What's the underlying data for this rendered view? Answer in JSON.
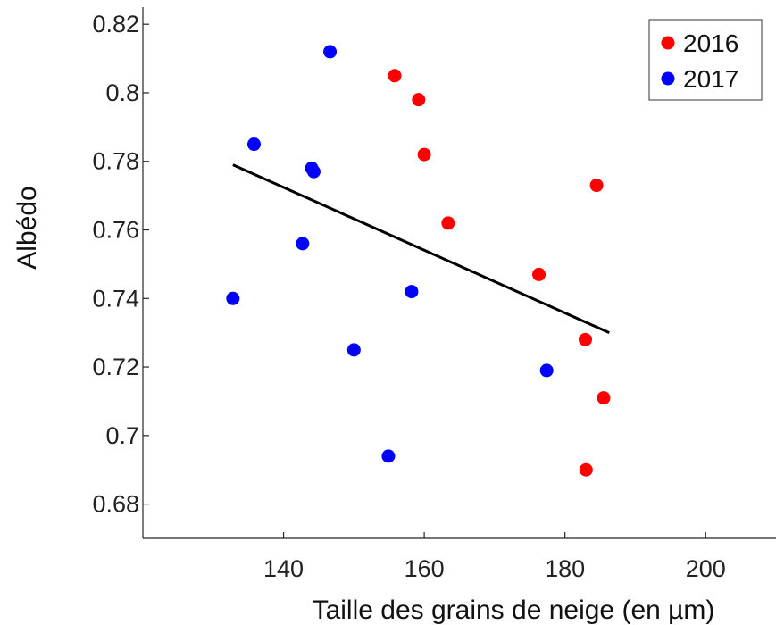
{
  "chart_data": {
    "type": "scatter",
    "title": "",
    "xlabel": "Taille des grains de neige (en µm)",
    "ylabel": "Albédo",
    "xlim": [
      120,
      210
    ],
    "ylim": [
      0.67,
      0.825
    ],
    "xticks": [
      {
        "value": 140,
        "label": "140"
      },
      {
        "value": 160,
        "label": "160"
      },
      {
        "value": 180,
        "label": "180"
      },
      {
        "value": 200,
        "label": "200"
      }
    ],
    "yticks": [
      {
        "value": 0.68,
        "label": "0.68"
      },
      {
        "value": 0.7,
        "label": "0.7"
      },
      {
        "value": 0.72,
        "label": "0.72"
      },
      {
        "value": 0.74,
        "label": "0.74"
      },
      {
        "value": 0.76,
        "label": "0.76"
      },
      {
        "value": 0.78,
        "label": "0.78"
      },
      {
        "value": 0.8,
        "label": "0.8"
      },
      {
        "value": 0.82,
        "label": "0.82"
      }
    ],
    "grid": false,
    "legend_position": "top-right",
    "series": [
      {
        "name": "2016",
        "color": "#ff0000",
        "points": [
          {
            "x": 155.8,
            "y": 0.805
          },
          {
            "x": 159.2,
            "y": 0.798
          },
          {
            "x": 160.0,
            "y": 0.782
          },
          {
            "x": 163.4,
            "y": 0.762
          },
          {
            "x": 176.3,
            "y": 0.747
          },
          {
            "x": 182.9,
            "y": 0.728
          },
          {
            "x": 184.5,
            "y": 0.773
          },
          {
            "x": 185.5,
            "y": 0.711
          },
          {
            "x": 183.0,
            "y": 0.69
          }
        ]
      },
      {
        "name": "2017",
        "color": "#0000ff",
        "points": [
          {
            "x": 146.6,
            "y": 0.812
          },
          {
            "x": 135.8,
            "y": 0.785
          },
          {
            "x": 144.0,
            "y": 0.778
          },
          {
            "x": 144.3,
            "y": 0.777
          },
          {
            "x": 142.7,
            "y": 0.756
          },
          {
            "x": 132.8,
            "y": 0.74
          },
          {
            "x": 158.2,
            "y": 0.742
          },
          {
            "x": 150.0,
            "y": 0.725
          },
          {
            "x": 177.4,
            "y": 0.719
          },
          {
            "x": 154.9,
            "y": 0.694
          }
        ]
      }
    ],
    "trendline": {
      "color": "#000000",
      "x": [
        132.8,
        186.3
      ],
      "y": [
        0.779,
        0.73
      ]
    }
  }
}
